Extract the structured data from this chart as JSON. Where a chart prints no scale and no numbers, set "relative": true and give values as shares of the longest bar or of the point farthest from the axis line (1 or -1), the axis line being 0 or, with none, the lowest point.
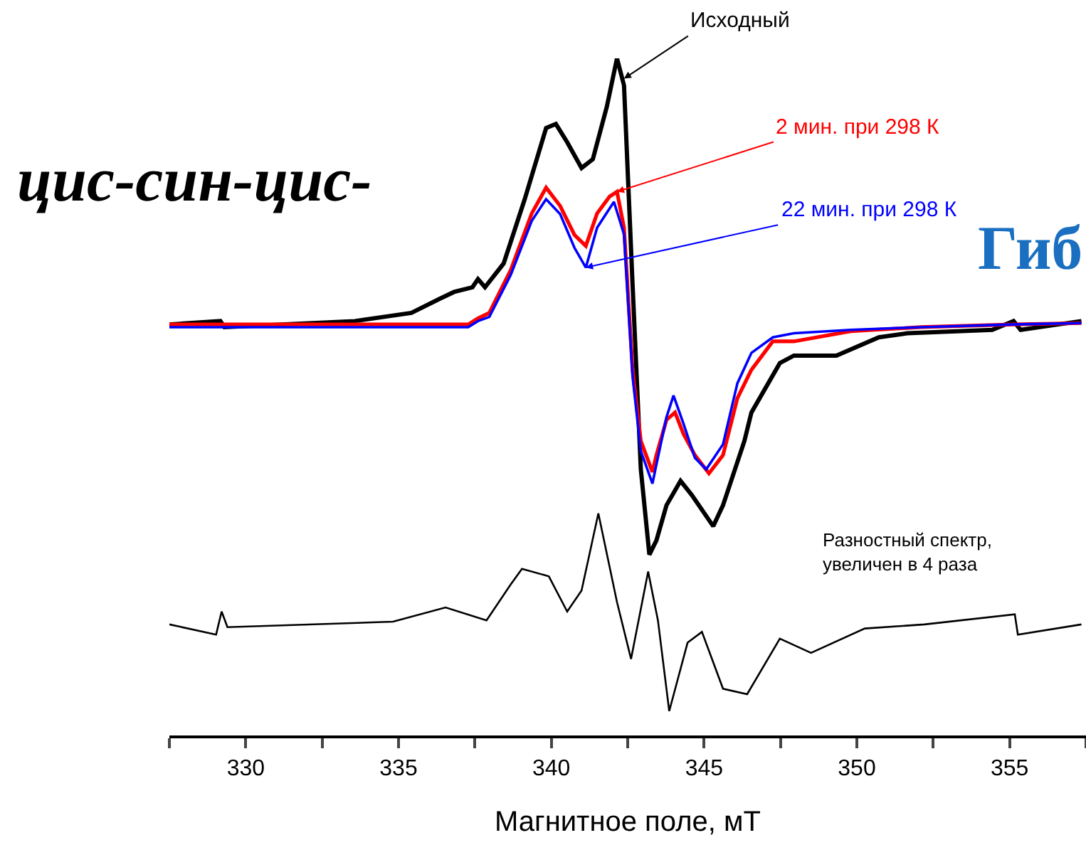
{
  "chart_data": {
    "type": "line",
    "relative": true,
    "xlabel": "Магнитное поле, мТ",
    "xlim": [
      327.5,
      357.5
    ],
    "xticks": [
      {
        "value": 327.5,
        "label": null
      },
      330,
      {
        "value": 332.5,
        "label": null
      },
      335,
      {
        "value": 337.5,
        "label": null
      },
      340,
      {
        "value": 342.5,
        "label": null
      },
      345,
      {
        "value": 347.5,
        "label": null
      },
      350,
      {
        "value": 352.5,
        "label": null
      },
      355,
      {
        "value": 357.5,
        "label": null
      }
    ],
    "grid": false,
    "marker": "none",
    "line_style": "solid",
    "tick_labels": "x",
    "series": [
      {
        "color": "#000000",
        "x": [
          327.5,
          329.17,
          329.3,
          333.57,
          335.42,
          336.35,
          336.82,
          337.42,
          337.6,
          337.83,
          338.44,
          339.13,
          339.83,
          340.15,
          340.52,
          340.99,
          341.36,
          341.82,
          342.15,
          342.38,
          342.66,
          342.93,
          343.21,
          343.44,
          343.77,
          344.23,
          344.6,
          345.3,
          345.62,
          346.32,
          346.55,
          347.48,
          347.94,
          349.33,
          350.72,
          351.65,
          354.43,
          355.13,
          355.36,
          357.35
        ],
        "values": [
          0.607,
          0.612,
          0.603,
          0.612,
          0.624,
          0.645,
          0.655,
          0.662,
          0.674,
          0.662,
          0.697,
          0.792,
          0.897,
          0.903,
          0.876,
          0.838,
          0.851,
          0.929,
          1.0,
          0.96,
          0.666,
          0.393,
          0.267,
          0.288,
          0.34,
          0.376,
          0.355,
          0.309,
          0.34,
          0.435,
          0.477,
          0.55,
          0.561,
          0.561,
          0.588,
          0.594,
          0.599,
          0.612,
          0.599,
          0.612
        ]
      },
      {
        "color": "#ff0000",
        "x": [
          327.5,
          337.28,
          337.6,
          337.97,
          338.67,
          339.36,
          339.83,
          340.29,
          340.76,
          341.13,
          341.5,
          341.91,
          342.15,
          342.38,
          342.66,
          342.93,
          343.31,
          343.44,
          343.77,
          344.05,
          344.33,
          344.7,
          345.16,
          345.62,
          346.09,
          346.55,
          347.25,
          347.94,
          349.8,
          352.11,
          355.13,
          357.35
        ],
        "values": [
          0.607,
          0.607,
          0.616,
          0.624,
          0.687,
          0.771,
          0.809,
          0.782,
          0.739,
          0.723,
          0.771,
          0.796,
          0.803,
          0.75,
          0.54,
          0.435,
          0.389,
          0.414,
          0.466,
          0.477,
          0.445,
          0.414,
          0.387,
          0.414,
          0.498,
          0.54,
          0.582,
          0.582,
          0.597,
          0.603,
          0.607,
          0.609
        ]
      },
      {
        "color": "#0000ff",
        "x": [
          327.5,
          337.28,
          337.6,
          337.97,
          338.67,
          339.36,
          339.83,
          340.29,
          340.76,
          341.13,
          341.5,
          342.05,
          342.38,
          342.66,
          342.93,
          343.31,
          343.44,
          343.77,
          344.0,
          344.33,
          344.7,
          345.07,
          345.62,
          346.09,
          346.55,
          347.25,
          347.94,
          349.8,
          352.11,
          355.13,
          357.35
        ],
        "values": [
          0.603,
          0.603,
          0.612,
          0.618,
          0.68,
          0.76,
          0.792,
          0.77,
          0.72,
          0.691,
          0.75,
          0.788,
          0.74,
          0.53,
          0.42,
          0.372,
          0.4,
          0.47,
          0.502,
          0.46,
          0.41,
          0.393,
          0.43,
          0.52,
          0.565,
          0.588,
          0.594,
          0.599,
          0.603,
          0.607,
          0.609
        ]
      },
      {
        "color": "#000000",
        "x": [
          327.5,
          329.03,
          329.21,
          329.4,
          334.82,
          336.54,
          337.88,
          338.67,
          339.04,
          339.92,
          340.52,
          340.99,
          341.54,
          342.15,
          342.61,
          343.17,
          343.49,
          343.86,
          344.46,
          344.93,
          345.62,
          346.41,
          347.48,
          348.5,
          350.26,
          352.21,
          355.17,
          355.27,
          357.35
        ],
        "values": [
          0.164,
          0.149,
          0.183,
          0.16,
          0.168,
          0.189,
          0.17,
          0.223,
          0.246,
          0.235,
          0.183,
          0.214,
          0.328,
          0.197,
          0.113,
          0.242,
          0.17,
          0.036,
          0.137,
          0.153,
          0.069,
          0.061,
          0.143,
          0.122,
          0.158,
          0.164,
          0.179,
          0.149,
          0.164
        ]
      }
    ],
    "annotations": [
      {
        "text": "Исходный",
        "x": 342.38,
        "y": 0.97
      },
      {
        "text": "2 мин. при 298 К",
        "x": 342.15,
        "y": 0.803
      },
      {
        "text": "22 мин. при 298 К",
        "x": 341.13,
        "y": 0.691
      },
      "Разностный спектр,\nувеличен в 4 раза",
      "цис-син-цис-",
      "Гиб"
    ]
  }
}
